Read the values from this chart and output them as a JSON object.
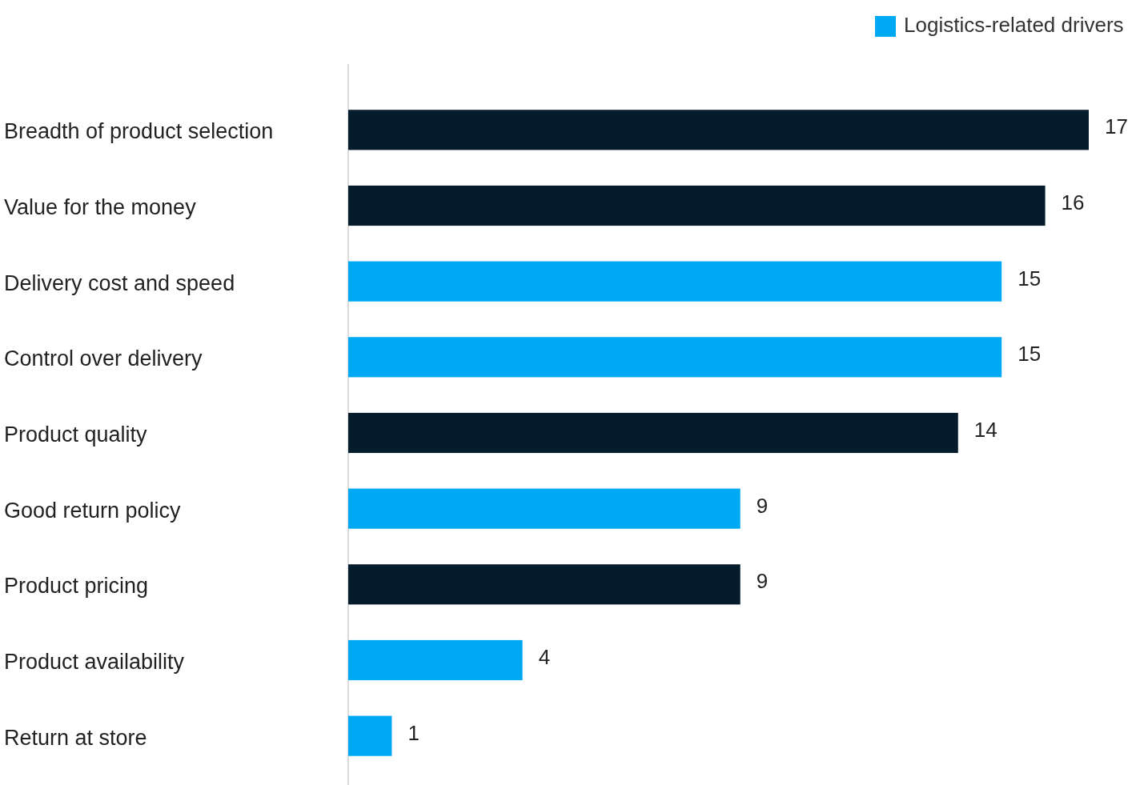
{
  "chart_data": {
    "type": "bar",
    "orientation": "horizontal",
    "data_labels": true,
    "legend": "top right",
    "categories": [
      "Breadth of product selection",
      "Value for the money",
      "Delivery cost and speed",
      "Control over delivery",
      "Product quality",
      "Good return policy",
      "Product pricing",
      "Product availability",
      "Return at store"
    ],
    "series": [
      {
        "color": "#051c2c",
        "values": [
          17,
          16,
          null,
          null,
          14,
          null,
          9,
          null,
          null
        ]
      },
      {
        "name": "Logistics-related drivers",
        "color": "#00a9f4",
        "values": [
          null,
          null,
          15,
          15,
          null,
          9,
          null,
          4,
          1
        ]
      }
    ]
  }
}
